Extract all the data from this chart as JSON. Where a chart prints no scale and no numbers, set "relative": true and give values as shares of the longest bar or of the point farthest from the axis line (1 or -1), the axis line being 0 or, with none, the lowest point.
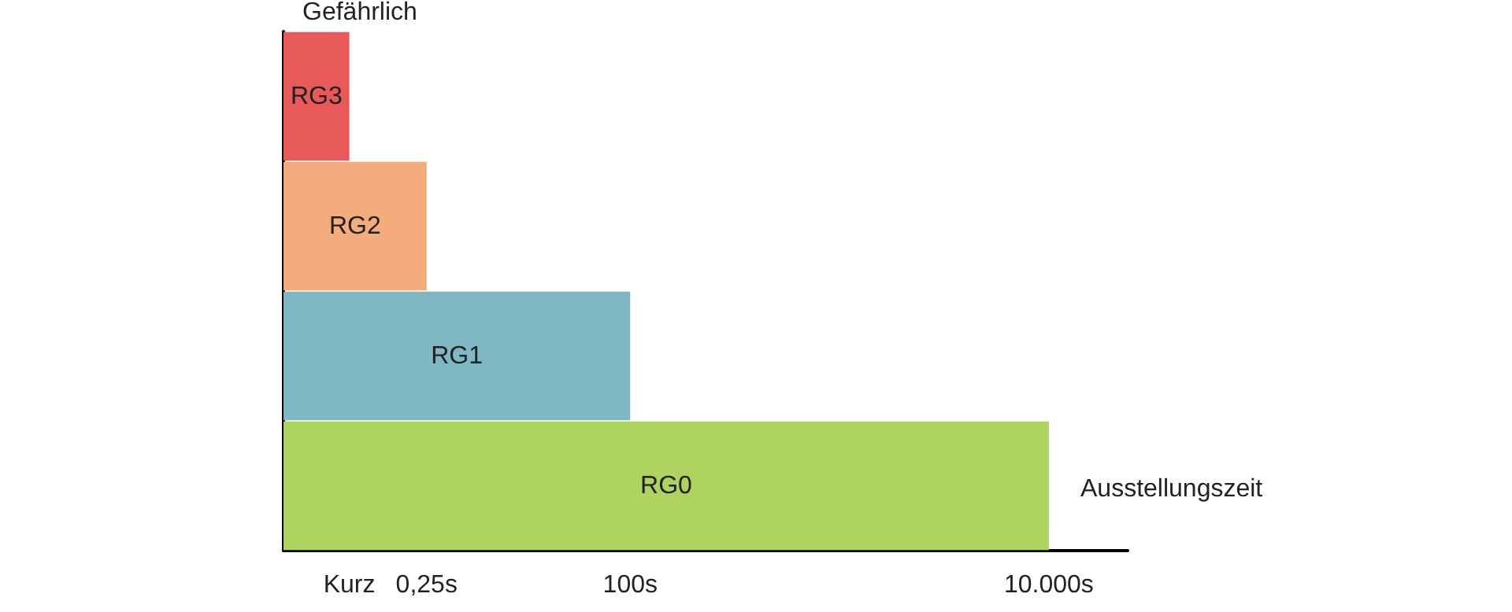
{
  "chart_data": {
    "type": "bar",
    "orientation": "horizontal",
    "relative": true,
    "xlabel": "Ausstellungszeit",
    "ylabel": "Gefährlich",
    "categories": [
      "RG3",
      "RG2",
      "RG1",
      "RG0"
    ],
    "values": [
      0.086,
      0.187,
      0.453,
      1
    ],
    "colors": [
      "#e85a5a",
      "#f4ac7c",
      "#7fb7c4",
      "#aed35e"
    ],
    "annotations": [
      "Kurz",
      "0,25s",
      "100s",
      "10.000s"
    ]
  }
}
